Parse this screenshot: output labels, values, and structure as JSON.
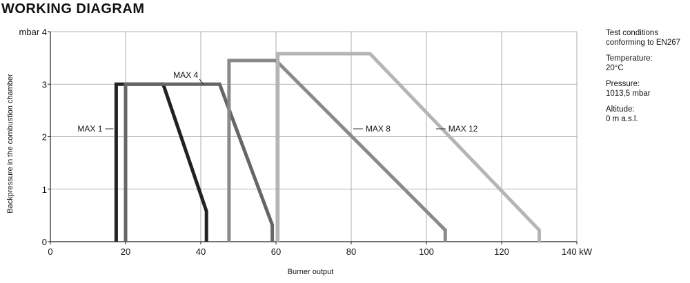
{
  "header": {
    "title": "WORKING DIAGRAM"
  },
  "notes": {
    "test_conditions": "Test conditions conforming to EN267",
    "temperature_label": "Temperature:",
    "temperature_value": "20°C",
    "pressure_label": "Pressure:",
    "pressure_value": "1013,5 mbar",
    "altitude_label": "Altitude:",
    "altitude_value": "0 m a.s.l."
  },
  "chart_data": {
    "type": "line",
    "title": "",
    "xlabel": "Burner output",
    "ylabel": "Backpressure in the combustion chamber",
    "x_unit": "kW",
    "y_unit": "mbar",
    "xlim": [
      0,
      140
    ],
    "ylim": [
      0,
      4
    ],
    "x_ticks": [
      0,
      20,
      40,
      60,
      80,
      100,
      120,
      140
    ],
    "y_ticks": [
      0,
      1,
      2,
      3,
      4
    ],
    "grid": true,
    "series": [
      {
        "name": "MAX 1",
        "color": "#222222",
        "points": [
          [
            17.5,
            0
          ],
          [
            17.5,
            3.0
          ],
          [
            30,
            3.0
          ],
          [
            41.5,
            0.58
          ],
          [
            41.5,
            0
          ]
        ],
        "label_at": [
          17.5,
          2.15
        ],
        "label_side": "left"
      },
      {
        "name": "MAX 4",
        "color": "#666666",
        "points": [
          [
            20,
            0
          ],
          [
            20,
            3.0
          ],
          [
            45,
            3.0
          ],
          [
            59,
            0.32
          ],
          [
            59,
            0
          ]
        ],
        "label_at": [
          36,
          3.12
        ],
        "label_side": "above"
      },
      {
        "name": "MAX 8",
        "color": "#8a8a8a",
        "points": [
          [
            47.5,
            0
          ],
          [
            47.5,
            3.45
          ],
          [
            60,
            3.45
          ],
          [
            105,
            0.22
          ],
          [
            105,
            0
          ]
        ],
        "label_at": [
          82,
          2.15
        ],
        "label_side": "right"
      },
      {
        "name": "MAX 12",
        "color": "#b5b5b5",
        "points": [
          [
            60.5,
            0
          ],
          [
            60.5,
            3.58
          ],
          [
            85,
            3.58
          ],
          [
            130,
            0.22
          ],
          [
            130,
            0
          ]
        ],
        "label_at": [
          104,
          2.15
        ],
        "label_side": "right"
      }
    ]
  }
}
